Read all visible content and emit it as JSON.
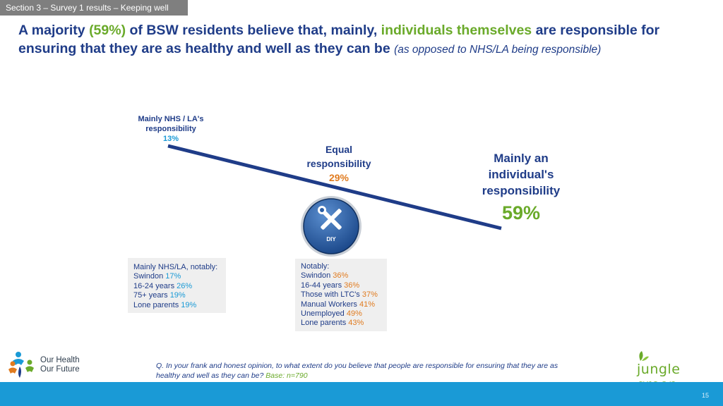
{
  "section_tab": "Section 3 – Survey 1 results – Keeping well",
  "headline": {
    "part1": "A majority ",
    "pct": "(59%)",
    "part2": " of BSW residents believe that, mainly, ",
    "highlight": "individuals themselves",
    "part3": " are responsible for ensuring that they are as healthy and well as they can be ",
    "italic": "(as opposed to NHS/LA being responsible)"
  },
  "scale": {
    "nhs": {
      "label_line1": "Mainly NHS / LA's",
      "label_line2": "responsibility",
      "pct": "13%"
    },
    "equal": {
      "label_line1": "Equal",
      "label_line2": "responsibility",
      "pct": "29%"
    },
    "individual": {
      "label_line1": "Mainly an",
      "label_line2": "individual's",
      "label_line3": "responsibility",
      "pct": "59%"
    }
  },
  "badge": {
    "text": "DIY",
    "icon": "tools-icon"
  },
  "note_nhs": {
    "heading": "Mainly NHS/LA, notably:",
    "rows": [
      {
        "label": "Swindon",
        "value": "17%"
      },
      {
        "label": "16-24 years",
        "value": "26%"
      },
      {
        "label": "75+ years",
        "value": "19%"
      },
      {
        "label": "Lone parents",
        "value": "19%"
      }
    ]
  },
  "note_notably": {
    "heading": "Notably:",
    "rows": [
      {
        "label": "Swindon",
        "value": "36%"
      },
      {
        "label": "16-44 years",
        "value": "36%"
      },
      {
        "label": "Those with LTC's",
        "value": "37%"
      },
      {
        "label": "Manual Workers",
        "value": "41%"
      },
      {
        "label": "Unemployed",
        "value": "49%"
      },
      {
        "label": "Lone parents",
        "value": "43%"
      }
    ]
  },
  "question": {
    "text": "Q. In your frank and honest opinion, to what extent do you believe that people are responsible for ensuring that they are as healthy and well as they can be?",
    "base": "Base: n=790"
  },
  "logo_left": {
    "line1": "Our Health",
    "line2": "Our Future"
  },
  "logo_right": {
    "text": "jungle green"
  },
  "page_number": "15",
  "colors": {
    "navy": "#1f3c88",
    "green": "#6aaa2a",
    "orange": "#e07b1f",
    "cyan": "#1a9ad6",
    "grey_tab": "#7f7f7f",
    "note_bg": "#efefef"
  }
}
